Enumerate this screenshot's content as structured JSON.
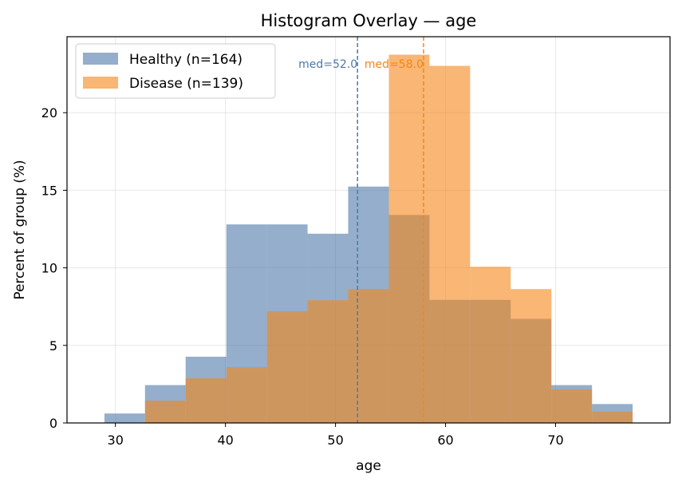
{
  "chart_data": {
    "type": "histogram",
    "title": "Histogram Overlay — age",
    "xlabel": "age",
    "ylabel": "Percent of group (%)",
    "xlim": [
      25.6,
      80.4
    ],
    "ylim": [
      0,
      24.9
    ],
    "xticks": [
      30,
      40,
      50,
      60,
      70
    ],
    "yticks": [
      0,
      5,
      10,
      15,
      20
    ],
    "grid": true,
    "legend_position": "upper left",
    "bin_edges": [
      29,
      32.69,
      36.38,
      40.08,
      43.77,
      47.46,
      51.15,
      54.85,
      58.54,
      62.23,
      65.92,
      69.62,
      73.31,
      77
    ],
    "series": [
      {
        "name": "Healthy (n=164)",
        "color": "#4c78a8",
        "values": [
          0.61,
          2.44,
          4.27,
          12.8,
          12.8,
          12.2,
          15.24,
          13.41,
          7.93,
          7.93,
          6.71,
          2.44,
          1.22
        ]
      },
      {
        "name": "Disease (n=139)",
        "color": "#f58518",
        "values": [
          0,
          1.44,
          2.88,
          3.6,
          7.19,
          7.91,
          8.63,
          23.74,
          23.02,
          10.07,
          8.63,
          2.16,
          0.72
        ]
      }
    ],
    "annotations": [
      {
        "label": "med=52.0",
        "x": 52.0,
        "color": "#4c78a8"
      },
      {
        "label": "med=58.0",
        "x": 58.0,
        "color": "#f58518"
      }
    ]
  }
}
